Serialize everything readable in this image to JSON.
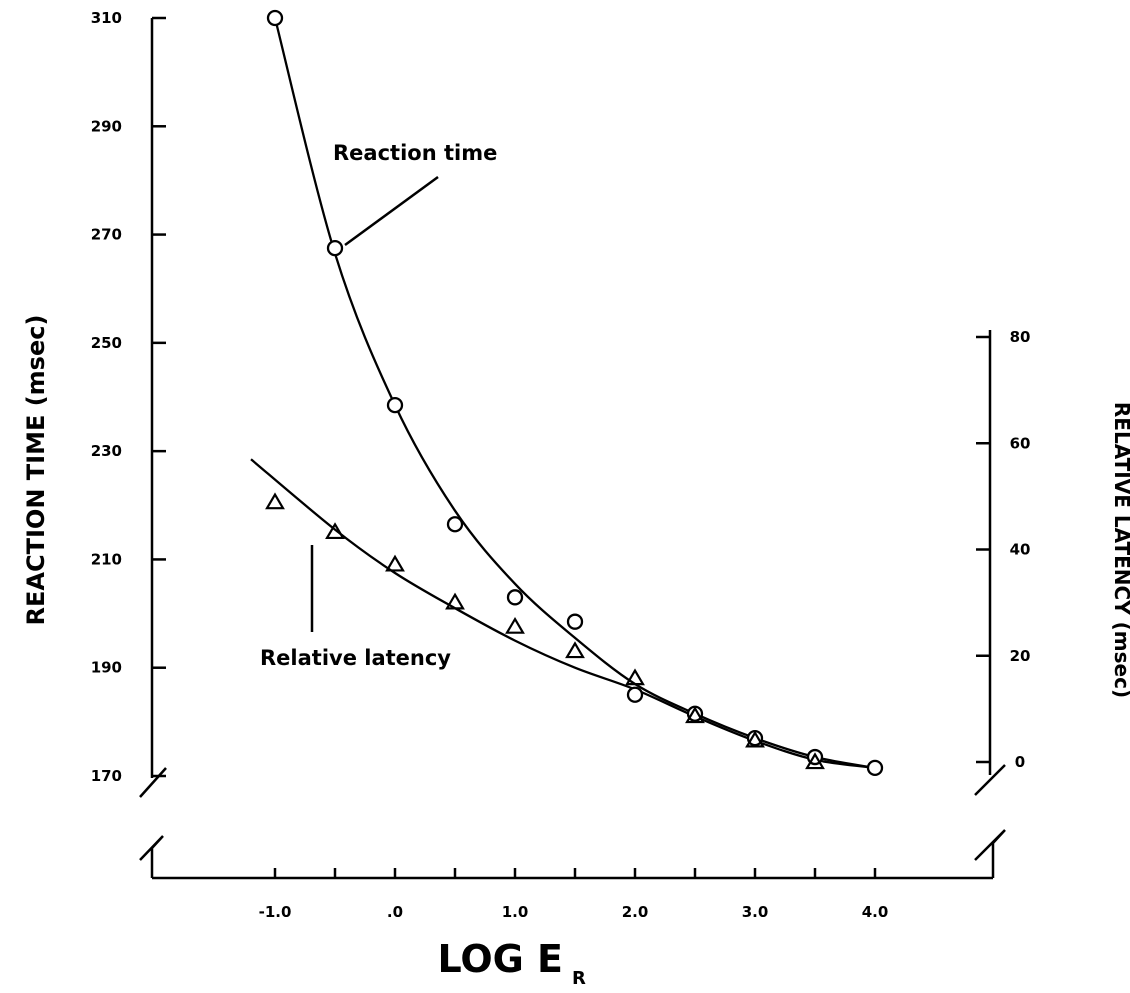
{
  "chart_data": {
    "type": "line",
    "title": "",
    "xlabel": "LOG E",
    "xlabel_subscript": "R",
    "ylabel_left": "REACTION TIME (msec)",
    "ylabel_right": "RELATIVE LATENCY (msec)",
    "x_ticks": [
      -1,
      -0.5,
      0,
      0.5,
      1,
      1.5,
      2,
      2.5,
      3,
      3.5,
      4
    ],
    "x_tick_labels": [
      "-1.0",
      "",
      ".0",
      "",
      "1.0",
      "",
      "2.0",
      "",
      "3.0",
      "",
      "4.0"
    ],
    "y_left_ticks": [
      170,
      190,
      210,
      230,
      250,
      270,
      290,
      310
    ],
    "y_left_tick_labels": [
      "170",
      "190",
      "210",
      "230",
      "250",
      "270",
      "290",
      "310"
    ],
    "y_right_ticks": [
      0,
      20,
      40,
      60,
      80
    ],
    "y_right_tick_labels": [
      "0",
      "20",
      "40",
      "60",
      "80"
    ],
    "y_left_range": [
      170,
      310
    ],
    "y_right_range": [
      0,
      80
    ],
    "annotations": [
      "Reaction time",
      "Relative latency"
    ],
    "series": [
      {
        "name": "Reaction time",
        "marker": "circle",
        "axis": "left",
        "x": [
          -1.0,
          -0.5,
          0.0,
          0.5,
          1.0,
          1.5,
          2.0,
          2.5,
          3.0,
          3.5,
          4.0
        ],
        "y": [
          310,
          267.5,
          238.5,
          216.5,
          203,
          198.5,
          185,
          181.5,
          177,
          173.5,
          171.5
        ],
        "fit_y": [
          310,
          266.5,
          238.5,
          219,
          205.5,
          195.5,
          187,
          181.5,
          177,
          173.5,
          171.5
        ]
      },
      {
        "name": "Relative latency",
        "marker": "triangle",
        "axis": "left",
        "x": [
          -1.0,
          -0.5,
          0.0,
          0.5,
          1.0,
          1.5,
          2.0,
          2.5,
          3.0,
          3.5
        ],
        "y": [
          220.5,
          215,
          209,
          202,
          197.5,
          193,
          188,
          181,
          176.5,
          172.5
        ],
        "fit_x": [
          -1.2,
          -0.5,
          0.0,
          0.5,
          1.0,
          1.5,
          2.0,
          2.5,
          3.0,
          3.5,
          4.0
        ],
        "fit_y": [
          228.5,
          215.5,
          207.5,
          201,
          195,
          190,
          186,
          181,
          176.5,
          173,
          171.5
        ]
      }
    ]
  }
}
